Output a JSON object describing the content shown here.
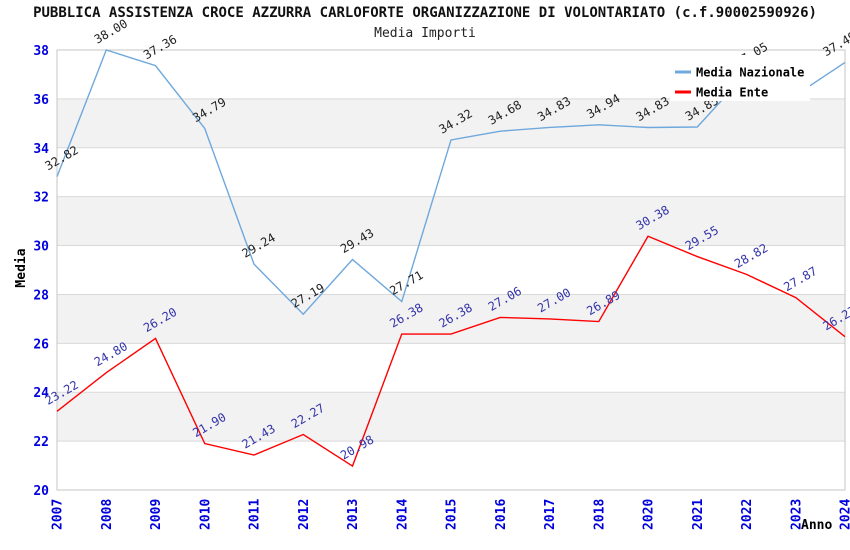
{
  "chart_data": {
    "type": "line",
    "title": "PUBBLICA ASSISTENZA CROCE AZZURRA CARLOFORTE ORGANIZZAZIONE DI VOLONTARIATO (c.f.90002590926)",
    "subtitle": "Media Importi",
    "xlabel": "Anno",
    "ylabel": "Media",
    "ylim": [
      20,
      38
    ],
    "ytick_step": 2,
    "yticks": [
      20,
      22,
      24,
      26,
      28,
      30,
      32,
      34,
      36,
      38
    ],
    "categories": [
      "2007",
      "2008",
      "2009",
      "2010",
      "2011",
      "2012",
      "2013",
      "2014",
      "2015",
      "2016",
      "2017",
      "2018",
      "2020",
      "2021",
      "2022",
      "2023",
      "2024"
    ],
    "legend_position": "top-right",
    "grid": "horizontal-gridlines-with-alternating-gray-bands",
    "series": [
      {
        "name": "Media Nazionale",
        "color": "#6FA8DC",
        "label_color": "#222222",
        "values": [
          32.82,
          38.0,
          37.36,
          34.79,
          29.24,
          27.19,
          29.43,
          27.71,
          34.32,
          34.68,
          34.83,
          34.94,
          34.83,
          34.85,
          37.05,
          36.15,
          37.49
        ],
        "point_labels": [
          "32.82",
          "38.00",
          "37.36",
          "34.79",
          "29.24",
          "27.19",
          "29.43",
          "27.71",
          "34.32",
          "34.68",
          "34.83",
          "34.94",
          "34.83",
          "34.85",
          "37.05",
          "",
          "37.49"
        ]
      },
      {
        "name": "Media Ente",
        "color": "#FF0000",
        "label_color": "#3333AA",
        "values": [
          23.22,
          24.8,
          26.2,
          21.9,
          21.43,
          22.27,
          20.98,
          26.38,
          26.38,
          27.06,
          27.0,
          26.89,
          30.38,
          29.55,
          28.82,
          27.87,
          26.27
        ],
        "point_labels": [
          "23.22",
          "24.80",
          "26.20",
          "21.90",
          "21.43",
          "22.27",
          "20.98",
          "26.38",
          "26.38",
          "27.06",
          "27.00",
          "26.89",
          "30.38",
          "29.55",
          "28.82",
          "27.87",
          "26.27"
        ]
      }
    ],
    "colors": {
      "band": "#f2f2f2",
      "grid": "#d9d9d9",
      "border": "#c6c6c6",
      "tick": "#0000DD",
      "axis_title": "#000000",
      "legend_text": "#000000",
      "background": "#ffffff"
    }
  }
}
